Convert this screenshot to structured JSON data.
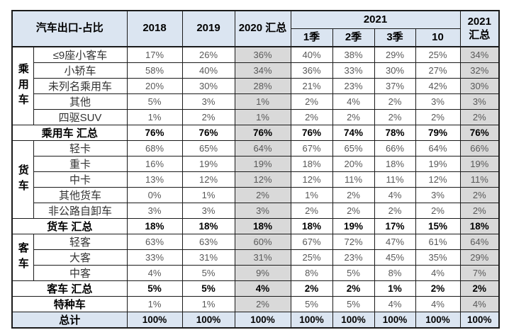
{
  "chart_data": {
    "type": "table",
    "title": "汽车出口-占比",
    "unit": "%",
    "header": {
      "y2018": "2018",
      "y2019": "2019",
      "y2020_total": "2020 汇总",
      "y2021_group": "2021",
      "q1": "1季",
      "q2": "2季",
      "q3": "3季",
      "m10": "10",
      "y2021_total": "2021 汇总"
    },
    "columns": [
      "2018",
      "2019",
      "2020 汇总",
      "2021 1季",
      "2021 2季",
      "2021 3季",
      "2021 10",
      "2021 汇总"
    ],
    "rows": [
      {
        "kind": "data",
        "group": "乘用车",
        "groupSpan": 5,
        "label": "≤9座小客车",
        "values": [
          "17%",
          "26%",
          "36%",
          "40%",
          "38%",
          "29%",
          "25%",
          "34%"
        ]
      },
      {
        "kind": "data",
        "label": "小轿车",
        "values": [
          "58%",
          "40%",
          "34%",
          "36%",
          "33%",
          "30%",
          "27%",
          "32%"
        ]
      },
      {
        "kind": "data",
        "label": "未列名乘用车",
        "values": [
          "20%",
          "30%",
          "28%",
          "21%",
          "23%",
          "37%",
          "42%",
          "30%"
        ]
      },
      {
        "kind": "data",
        "label": "其他",
        "values": [
          "5%",
          "3%",
          "1%",
          "2%",
          "4%",
          "2%",
          "3%",
          "3%"
        ]
      },
      {
        "kind": "data",
        "label": "四驱SUV",
        "values": [
          "1%",
          "2%",
          "1%",
          "2%",
          "2%",
          "2%",
          "2%",
          "2%"
        ]
      },
      {
        "kind": "subtotal",
        "label": "乘用车 汇总",
        "values": [
          "76%",
          "76%",
          "76%",
          "76%",
          "74%",
          "78%",
          "79%",
          "76%"
        ]
      },
      {
        "kind": "data",
        "group": "货车",
        "groupSpan": 5,
        "label": "轻卡",
        "values": [
          "68%",
          "65%",
          "64%",
          "67%",
          "65%",
          "66%",
          "64%",
          "66%"
        ]
      },
      {
        "kind": "data",
        "label": "重卡",
        "values": [
          "16%",
          "19%",
          "19%",
          "18%",
          "20%",
          "18%",
          "19%",
          "19%"
        ]
      },
      {
        "kind": "data",
        "label": "中卡",
        "values": [
          "13%",
          "12%",
          "12%",
          "12%",
          "11%",
          "11%",
          "12%",
          "11%"
        ]
      },
      {
        "kind": "data",
        "label": "其他货车",
        "values": [
          "0%",
          "1%",
          "2%",
          "1%",
          "2%",
          "4%",
          "3%",
          "2%"
        ]
      },
      {
        "kind": "data",
        "label": "非公路自卸车",
        "values": [
          "3%",
          "3%",
          "3%",
          "2%",
          "2%",
          "2%",
          "2%",
          "2%"
        ]
      },
      {
        "kind": "subtotal",
        "label": "货车 汇总",
        "values": [
          "18%",
          "18%",
          "18%",
          "18%",
          "19%",
          "17%",
          "15%",
          "18%"
        ]
      },
      {
        "kind": "data",
        "group": "客车",
        "groupSpan": 3,
        "label": "轻客",
        "values": [
          "63%",
          "63%",
          "60%",
          "67%",
          "72%",
          "47%",
          "61%",
          "64%"
        ]
      },
      {
        "kind": "data",
        "label": "大客",
        "values": [
          "33%",
          "31%",
          "31%",
          "25%",
          "23%",
          "45%",
          "35%",
          "29%"
        ]
      },
      {
        "kind": "data",
        "label": "中客",
        "values": [
          "4%",
          "5%",
          "9%",
          "8%",
          "5%",
          "8%",
          "4%",
          "7%"
        ]
      },
      {
        "kind": "subtotal",
        "label": "客车 汇总",
        "values": [
          "5%",
          "5%",
          "4%",
          "2%",
          "2%",
          "1%",
          "2%",
          "2%"
        ]
      },
      {
        "kind": "special",
        "label": "特种车",
        "values": [
          "1%",
          "1%",
          "2%",
          "5%",
          "5%",
          "4%",
          "4%",
          "4%"
        ]
      },
      {
        "kind": "total",
        "label": "总计",
        "values": [
          "100%",
          "100%",
          "100%",
          "100%",
          "100%",
          "100%",
          "100%",
          "100%"
        ]
      }
    ],
    "layout": {
      "grid": "on",
      "summary_column_bg": "#d9d9d9",
      "header_bg": "#dbe5f1",
      "total_row_bg": "#dbe5f1",
      "border_color": "#1a1a1a",
      "value_text_color": "#595959"
    }
  }
}
